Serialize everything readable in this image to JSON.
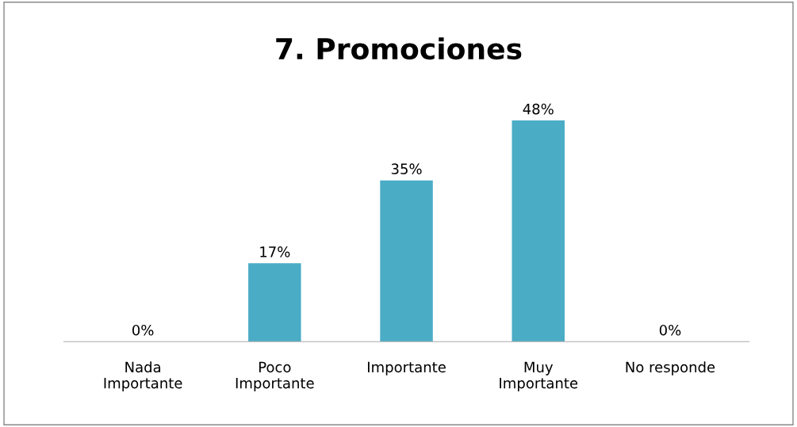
{
  "chart_data": {
    "type": "bar",
    "title": "7. Promociones",
    "categories": [
      "Nada\nImportante",
      "Poco\nImportante",
      "Importante",
      "Muy\nImportante",
      "No responde"
    ],
    "values": [
      0,
      17,
      35,
      48,
      0
    ],
    "value_labels": [
      "0%",
      "17%",
      "35%",
      "48%",
      "0%"
    ],
    "color": "#4bacc6",
    "grid": false,
    "legend": false
  }
}
